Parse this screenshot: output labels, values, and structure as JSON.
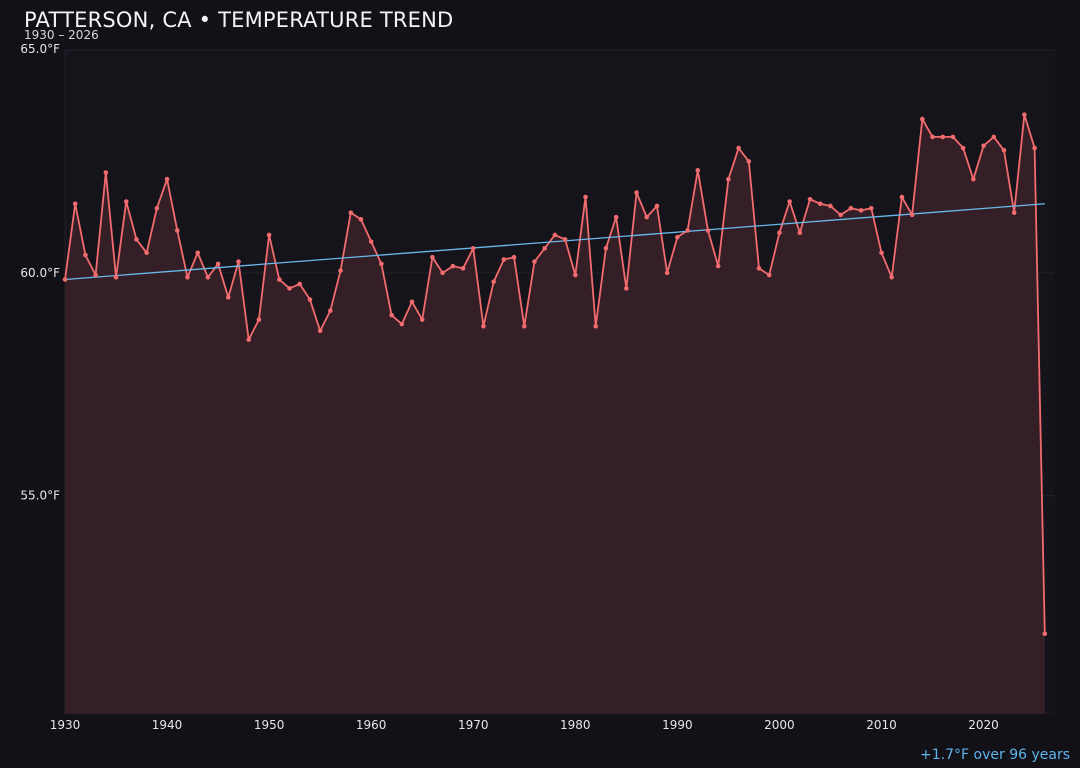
{
  "page": {
    "title": "PATTERSON, CA • TEMPERATURE TREND",
    "subtitle": "1930 – 2026",
    "footer_note": "+1.7°F over 96 years"
  },
  "colors": {
    "background": "#121118",
    "plot_background": "#16141b",
    "line": "#f26b6e",
    "area_fill": "#341f26",
    "trend": "#6ab9ec",
    "grid": "#22212a",
    "tick_text": "#e6e6ea"
  },
  "chart_data": {
    "type": "line",
    "title": "PATTERSON, CA • TEMPERATURE TREND",
    "subtitle": "1930 – 2026",
    "xlabel": "",
    "ylabel": "",
    "xlim": [
      1930,
      2027
    ],
    "ylim": [
      50.1,
      65.0
    ],
    "x_ticks": [
      1930,
      1940,
      1950,
      1960,
      1970,
      1980,
      1990,
      2000,
      2010,
      2020
    ],
    "y_ticks": [
      {
        "value": 55.0,
        "label": "55.0°F"
      },
      {
        "value": 60.0,
        "label": "60.0°F"
      },
      {
        "value": 65.0,
        "label": "65.0°F"
      }
    ],
    "grid": true,
    "area_fill": true,
    "series": [
      {
        "x": [
          1930,
          1931,
          1932,
          1933,
          1934,
          1935,
          1936,
          1937,
          1938,
          1939,
          1940,
          1941,
          1942,
          1943,
          1944,
          1945,
          1946,
          1947,
          1948,
          1949,
          1950,
          1951,
          1952,
          1953,
          1954,
          1955,
          1956,
          1957,
          1958,
          1959,
          1960,
          1961,
          1962,
          1963,
          1964,
          1965,
          1966,
          1967,
          1968,
          1969,
          1970,
          1971,
          1972,
          1973,
          1974,
          1975,
          1976,
          1977,
          1978,
          1979,
          1980,
          1981,
          1982,
          1983,
          1984,
          1985,
          1986,
          1987,
          1988,
          1989,
          1990,
          1991,
          1992,
          1993,
          1994,
          1995,
          1996,
          1997,
          1998,
          1999,
          2000,
          2001,
          2002,
          2003,
          2004,
          2005,
          2006,
          2007,
          2008,
          2009,
          2010,
          2011,
          2012,
          2013,
          2014,
          2015,
          2016,
          2017,
          2018,
          2019,
          2020,
          2021,
          2022,
          2023,
          2024,
          2025,
          2026
        ],
        "values": [
          59.85,
          61.55,
          60.4,
          59.95,
          62.25,
          59.9,
          61.6,
          60.75,
          60.45,
          61.45,
          62.1,
          60.95,
          59.9,
          60.45,
          59.9,
          60.2,
          59.45,
          60.25,
          58.5,
          58.95,
          60.85,
          59.85,
          59.65,
          59.75,
          59.4,
          58.7,
          59.15,
          60.05,
          61.35,
          61.2,
          60.7,
          60.2,
          59.05,
          58.85,
          59.35,
          58.95,
          60.35,
          60.0,
          60.15,
          60.1,
          60.55,
          58.8,
          59.8,
          60.3,
          60.35,
          58.8,
          60.25,
          60.55,
          60.85,
          60.75,
          59.95,
          61.7,
          58.8,
          60.55,
          61.25,
          59.65,
          61.8,
          61.25,
          61.5,
          60.0,
          60.8,
          60.95,
          62.3,
          60.95,
          60.15,
          62.1,
          62.8,
          62.5,
          60.1,
          59.95,
          60.9,
          61.6,
          60.9,
          61.65,
          61.55,
          61.5,
          61.3,
          61.45,
          61.4,
          61.45,
          60.45,
          59.9,
          61.7,
          61.3,
          63.45,
          63.05,
          63.05,
          63.05,
          62.8,
          62.1,
          62.85,
          63.05,
          62.75,
          61.35,
          63.55,
          62.8,
          51.9
        ]
      }
    ],
    "trendline": {
      "x": [
        1930,
        2026
      ],
      "values": [
        59.85,
        61.55
      ]
    }
  }
}
